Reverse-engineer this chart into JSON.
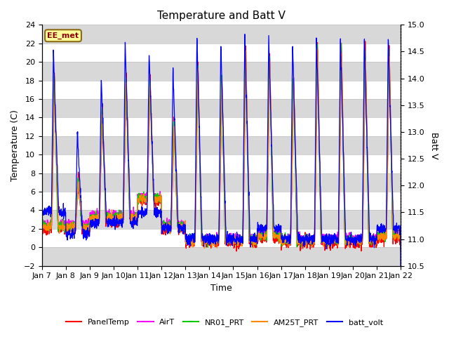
{
  "title": "Temperature and Batt V",
  "xlabel": "Time",
  "ylabel_left": "Temperature (C)",
  "ylabel_right": "Batt V",
  "ylim_left": [
    -2,
    24
  ],
  "ylim_right": [
    10.5,
    15.0
  ],
  "yticks_left": [
    -2,
    0,
    2,
    4,
    6,
    8,
    10,
    12,
    14,
    16,
    18,
    20,
    22,
    24
  ],
  "yticks_right": [
    10.5,
    11.0,
    11.5,
    12.0,
    12.5,
    13.0,
    13.5,
    14.0,
    14.5,
    15.0
  ],
  "xtick_labels": [
    "Jan 7",
    "Jan 8",
    "Jan 9",
    "Jan 10",
    "Jan 11",
    "Jan 12",
    "Jan 13",
    "Jan 14",
    "Jan 15",
    "Jan 16",
    "Jan 17",
    "Jan 18",
    "Jan 19",
    "Jan 20",
    "Jan 21",
    "Jan 22"
  ],
  "annotation_text": "EE_met",
  "annotation_color": "#8B0000",
  "annotation_bg": "#FFFF99",
  "annotation_border": "#8B6914",
  "colors": {
    "PanelTemp": "#FF0000",
    "AirT": "#FF00FF",
    "NR01_PRT": "#00CC00",
    "AM25T_PRT": "#FF8800",
    "batt_volt": "#0000FF"
  },
  "band_colors": [
    "#D8D8D8",
    "#FFFFFF"
  ],
  "grid_line_color": "#C0C0C0"
}
